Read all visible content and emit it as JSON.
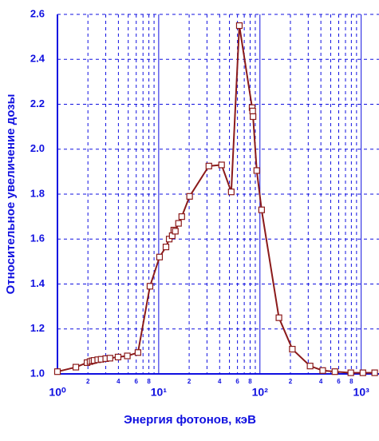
{
  "chart_data": {
    "type": "line",
    "xlabel": "Энергия фотонов, кэВ",
    "ylabel": "Относительное увеличение дозы",
    "log_x": true,
    "grid": true,
    "xlim": [
      1,
      1500
    ],
    "ylim": [
      1.0,
      2.6
    ],
    "xticks": [
      {
        "value": 1,
        "label": "10⁰"
      },
      {
        "value": 10,
        "label": "10¹"
      },
      {
        "value": 100,
        "label": "10²"
      },
      {
        "value": 1000,
        "label": "10³"
      }
    ],
    "x_minor_ticks": [
      {
        "value": 2,
        "label": "2"
      },
      {
        "value": 3,
        "label": null
      },
      {
        "value": 4,
        "label": "4"
      },
      {
        "value": 5,
        "label": null
      },
      {
        "value": 6,
        "label": "6"
      },
      {
        "value": 7,
        "label": null
      },
      {
        "value": 8,
        "label": "8"
      },
      {
        "value": 9,
        "label": null
      },
      {
        "value": 20,
        "label": "2"
      },
      {
        "value": 30,
        "label": null
      },
      {
        "value": 40,
        "label": "4"
      },
      {
        "value": 50,
        "label": null
      },
      {
        "value": 60,
        "label": "6"
      },
      {
        "value": 70,
        "label": null
      },
      {
        "value": 80,
        "label": "8"
      },
      {
        "value": 90,
        "label": null
      },
      {
        "value": 200,
        "label": "2"
      },
      {
        "value": 300,
        "label": null
      },
      {
        "value": 400,
        "label": "4"
      },
      {
        "value": 500,
        "label": null
      },
      {
        "value": 600,
        "label": "6"
      },
      {
        "value": 700,
        "label": null
      },
      {
        "value": 800,
        "label": "8"
      },
      {
        "value": 900,
        "label": null
      }
    ],
    "yticks": [
      {
        "value": 1.0,
        "label": "1.0"
      },
      1.2,
      1.4,
      1.6,
      1.8,
      {
        "value": 2.0,
        "label": "2.0"
      },
      2.2,
      2.4,
      2.6
    ],
    "series": [
      {
        "color": "#8b1a1a",
        "x": [
          1.0,
          1.52,
          1.96,
          2.1,
          2.2,
          2.3,
          2.5,
          2.7,
          3.0,
          3.3,
          3.97,
          4.9,
          6.24,
          8.2,
          10.2,
          11.8,
          12.7,
          13.6,
          14.1,
          14.6,
          15.7,
          16.9,
          20.2,
          31.3,
          41.8,
          52.1,
          62.6,
          83.7,
          84.8,
          85.5,
          93.0,
          103.9,
          154,
          209,
          313,
          417,
          550,
          790,
          1040,
          1360
        ],
        "values": [
          1.01,
          1.03,
          1.05,
          1.055,
          1.058,
          1.06,
          1.063,
          1.065,
          1.068,
          1.07,
          1.075,
          1.08,
          1.095,
          1.39,
          1.52,
          1.565,
          1.6,
          1.615,
          1.64,
          1.635,
          1.67,
          1.7,
          1.79,
          1.925,
          1.93,
          1.81,
          2.55,
          2.185,
          2.17,
          2.145,
          1.905,
          1.73,
          1.25,
          1.11,
          1.035,
          1.015,
          1.01,
          1.005,
          1.005,
          1.005
        ]
      }
    ]
  }
}
